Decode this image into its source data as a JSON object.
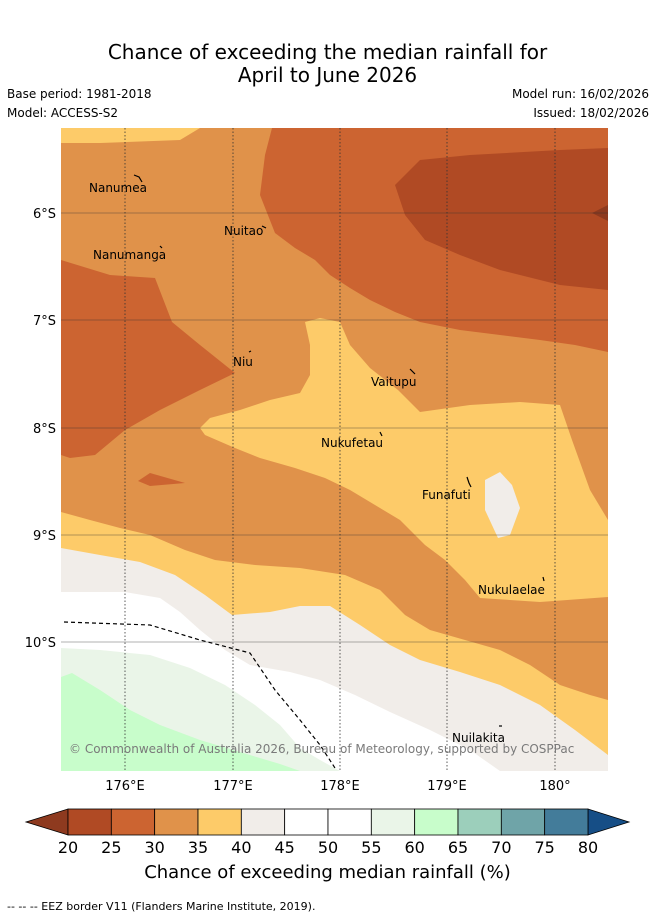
{
  "header": {
    "title_line1": "Chance of exceeding the median rainfall for",
    "title_line2": "April to June 2026",
    "base_period": "Base period: 1981-2018",
    "model": "Model: ACCESS-S2",
    "model_run": "Model run: 16/02/2026",
    "issued": "Issued: 18/02/2026"
  },
  "map": {
    "lat_labels": [
      "6°S",
      "7°S",
      "8°S",
      "9°S",
      "10°S"
    ],
    "lon_labels": [
      "176°E",
      "177°E",
      "178°E",
      "179°E",
      "180°"
    ],
    "places": [
      "Nanumea",
      "Nuitao",
      "Nanumanga",
      "Niu",
      "Vaitupu",
      "Nukufetau",
      "Funafuti",
      "Nukulaelae",
      "Nuilakita"
    ],
    "copyright": "© Commonwealth of Australia 2026, Bureau of Meteorology, supported by COSPPac"
  },
  "colorbar": {
    "ticks": [
      "20",
      "25",
      "30",
      "35",
      "40",
      "45",
      "50",
      "55",
      "60",
      "65",
      "70",
      "75",
      "80"
    ],
    "colors": [
      "#b04a24",
      "#cc6431",
      "#e0924a",
      "#fdcb69",
      "#f1ede9",
      "#ffffff",
      "#ffffff",
      "#eaf5e8",
      "#c8fdcb",
      "#9ccfbb",
      "#6fa4a8",
      "#437c9a"
    ],
    "under_color": "#8e3a1f",
    "over_color": "#164e86",
    "label": "Chance of exceeding median rainfall (%)"
  },
  "footer": "--  --  -- EEZ border V11 (Flanders Marine Institute, 2019)."
}
